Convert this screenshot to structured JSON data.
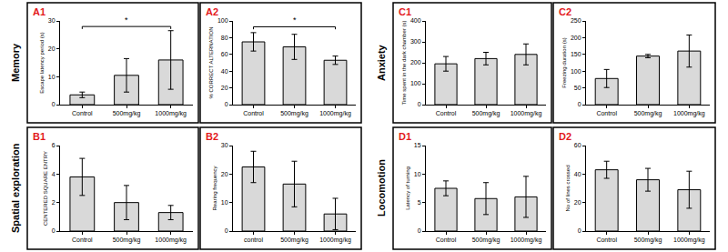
{
  "chart_data": [
    {
      "type": "bar",
      "title": "A1",
      "group": "Memory",
      "categories": [
        "Control",
        "500mg/kg",
        "1000mg/kg"
      ],
      "values": [
        3.5,
        10.5,
        16
      ],
      "errors": [
        1,
        6,
        10.5
      ],
      "y_label": "Escape latency period (s)",
      "ylim": [
        0,
        30
      ],
      "yticks": [
        0,
        10,
        20,
        30
      ],
      "color": "#d9d9d9",
      "significance": [
        {
          "between": [
            "Control",
            "1000mg/kg"
          ],
          "label": "*",
          "y": 28
        }
      ]
    },
    {
      "type": "bar",
      "title": "A2",
      "group": "Memory",
      "categories": [
        "Control",
        "500mg/kg",
        "1000mg/kg"
      ],
      "values": [
        75,
        69,
        53
      ],
      "errors": [
        11,
        15,
        5
      ],
      "y_label": "% CORRECT ALTERNATION",
      "ylim": [
        0,
        100
      ],
      "yticks": [
        0,
        20,
        40,
        60,
        80,
        100
      ],
      "color": "#d9d9d9",
      "significance": [
        {
          "between": [
            "Control",
            "1000mg/kg"
          ],
          "label": "*",
          "y": 93
        }
      ]
    },
    {
      "type": "bar",
      "title": "B1",
      "group": "Spatial exploration",
      "categories": [
        "Control",
        "500mg/kg",
        "1000mg/kg"
      ],
      "values": [
        3.8,
        2.0,
        1.3
      ],
      "errors": [
        1.3,
        1.2,
        0.5
      ],
      "y_label": "CENTERED SQUARE ENTRY",
      "ylim": [
        0,
        6
      ],
      "yticks": [
        0,
        2,
        4,
        6
      ],
      "color": "#d9d9d9"
    },
    {
      "type": "bar",
      "title": "B2",
      "group": "Spatial exploration",
      "categories": [
        "control",
        "500mg/kg",
        "1000mg/kg"
      ],
      "values": [
        22.5,
        16.5,
        6
      ],
      "errors": [
        5.5,
        8,
        5.5
      ],
      "y_label": "Rearing frequency",
      "ylim": [
        0,
        30
      ],
      "yticks": [
        0,
        10,
        20,
        30
      ],
      "color": "#d9d9d9"
    },
    {
      "type": "bar",
      "title": "C1",
      "group": "Anxiety",
      "categories": [
        "Control",
        "500mg/kg",
        "1000mg/kg"
      ],
      "values": [
        195,
        220,
        240
      ],
      "errors": [
        35,
        30,
        50
      ],
      "y_label": "Time spent in the dark chamber (s)",
      "ylim": [
        0,
        400
      ],
      "yticks": [
        0,
        100,
        200,
        300,
        400
      ],
      "color": "#d9d9d9"
    },
    {
      "type": "bar",
      "title": "C2",
      "group": "Anxiety",
      "categories": [
        "Control",
        "500mg/kg",
        "1000mg/kg"
      ],
      "values": [
        78,
        145,
        160
      ],
      "errors": [
        27,
        5,
        48
      ],
      "y_label": "Freezing duration (s)",
      "ylim": [
        0,
        250
      ],
      "yticks": [
        0,
        50,
        100,
        150,
        200,
        250
      ],
      "color": "#d9d9d9"
    },
    {
      "type": "bar",
      "title": "D1",
      "group": "Locomotion",
      "categories": [
        "Control",
        "500mg/kg",
        "1000mg/kg"
      ],
      "values": [
        7.5,
        5.7,
        6.0
      ],
      "errors": [
        1.3,
        2.8,
        3.6
      ],
      "y_label": "Latency of turning",
      "ylim": [
        0,
        15
      ],
      "yticks": [
        0,
        5,
        10,
        15
      ],
      "color": "#d9d9d9"
    },
    {
      "type": "bar",
      "title": "D2",
      "group": "Locomotion",
      "categories": [
        "Control",
        "500mg/kg",
        "1000mg/kg"
      ],
      "values": [
        43,
        36,
        29
      ],
      "errors": [
        6,
        8,
        13
      ],
      "y_label": "No of lines crossed",
      "ylim": [
        0,
        60
      ],
      "yticks": [
        0,
        20,
        40,
        60
      ],
      "color": "#d9d9d9"
    }
  ]
}
